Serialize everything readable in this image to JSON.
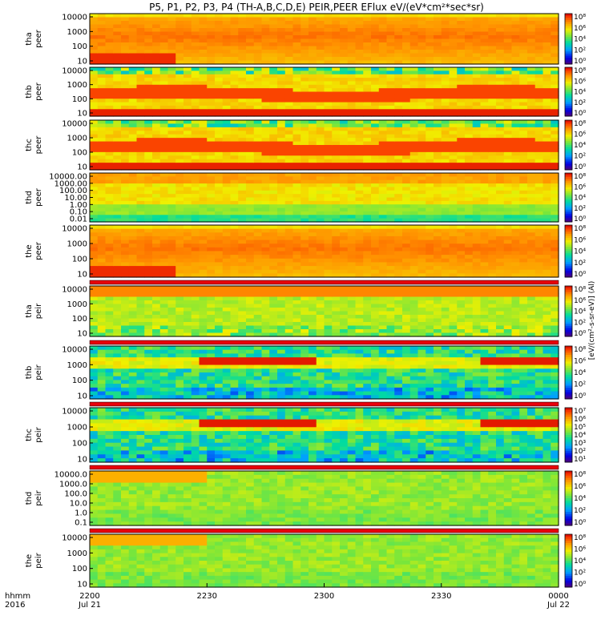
{
  "chart_data": {
    "type": "heatmap",
    "title": "P5, P1, P2, P3, P4 (TH-A,B,C,D,E) PEIR,PEER EFlux eV/(eV*cm²*sec*sr)",
    "colorbar_label": "[eV/(cm²-s-sr-eV)] (Al)",
    "x_axis": {
      "row1_label": "hhmm",
      "row2_label": "2016",
      "ticks": [
        {
          "t": 0,
          "l1": "2200",
          "l2": "Jul 21"
        },
        {
          "t": 30,
          "l1": "2230",
          "l2": ""
        },
        {
          "t": 60,
          "l1": "2300",
          "l2": ""
        },
        {
          "t": 90,
          "l1": "2330",
          "l2": ""
        },
        {
          "t": 120,
          "l1": "0000",
          "l2": "Jul 22"
        }
      ],
      "xlim": [
        0,
        120
      ]
    },
    "panels": [
      {
        "probe": "tha",
        "species": "peer",
        "yticks": [
          "10000",
          "1000",
          "100",
          "10"
        ],
        "cbar_ticks": [
          "10⁸",
          "10⁶",
          "10⁴",
          "10²",
          "10⁰"
        ],
        "has_flag_bar": false,
        "profile": "ee_hot"
      },
      {
        "probe": "thb",
        "species": "peer",
        "yticks": [
          "10000",
          "1000",
          "100",
          "10"
        ],
        "cbar_ticks": [
          "10⁸",
          "10⁶",
          "10⁴",
          "10²",
          "10⁰"
        ],
        "has_flag_bar": false,
        "profile": "ee_band"
      },
      {
        "probe": "thc",
        "species": "peer",
        "yticks": [
          "10000",
          "1000",
          "100",
          "10"
        ],
        "cbar_ticks": [
          "10⁸",
          "10⁶",
          "10⁴",
          "10²",
          "10⁰"
        ],
        "has_flag_bar": false,
        "profile": "ee_band"
      },
      {
        "probe": "thd",
        "species": "peer",
        "yticks": [
          "10000.00",
          "1000.00",
          "100.00",
          "10.00",
          "1.00",
          "0.10",
          "0.01"
        ],
        "cbar_ticks": [
          "10⁸",
          "10⁶",
          "10⁴",
          "10²",
          "10⁰"
        ],
        "has_flag_bar": false,
        "profile": "ee_low"
      },
      {
        "probe": "the",
        "species": "peer",
        "yticks": [
          "10000",
          "1000",
          "100",
          "10"
        ],
        "cbar_ticks": [
          "10⁸",
          "10⁶",
          "10⁴",
          "10²",
          "10⁰"
        ],
        "has_flag_bar": false,
        "profile": "ee_hot"
      },
      {
        "probe": "tha",
        "species": "peir",
        "yticks": [
          "10000",
          "1000",
          "100",
          "10"
        ],
        "cbar_ticks": [
          "10⁸",
          "10⁶",
          "10⁴",
          "10²",
          "10⁰"
        ],
        "has_flag_bar": true,
        "profile": "ii_a"
      },
      {
        "probe": "thb",
        "species": "peir",
        "yticks": [
          "10000",
          "1000",
          "100",
          "10"
        ],
        "cbar_ticks": [
          "10⁸",
          "10⁶",
          "10⁴",
          "10²",
          "10⁰"
        ],
        "has_flag_bar": true,
        "profile": "ii_band"
      },
      {
        "probe": "thc",
        "species": "peir",
        "yticks": [
          "10000",
          "1000",
          "100",
          "10"
        ],
        "cbar_ticks": [
          "10⁷",
          "10⁶",
          "10⁵",
          "10⁴",
          "10³",
          "10²",
          "10¹"
        ],
        "has_flag_bar": true,
        "profile": "ii_band"
      },
      {
        "probe": "thd",
        "species": "peir",
        "yticks": [
          "10000.0",
          "1000.0",
          "100.0",
          "10.0",
          "1.0",
          "0.1"
        ],
        "cbar_ticks": [
          "10⁸",
          "10⁶",
          "10⁴",
          "10²",
          "10⁰"
        ],
        "has_flag_bar": true,
        "profile": "ii_flat"
      },
      {
        "probe": "the",
        "species": "peir",
        "yticks": [
          "10000",
          "1000",
          "100",
          "10"
        ],
        "cbar_ticks": [
          "10⁸",
          "10⁶",
          "10⁴",
          "10²",
          "10⁰"
        ],
        "has_flag_bar": true,
        "profile": "ii_flat"
      }
    ]
  }
}
